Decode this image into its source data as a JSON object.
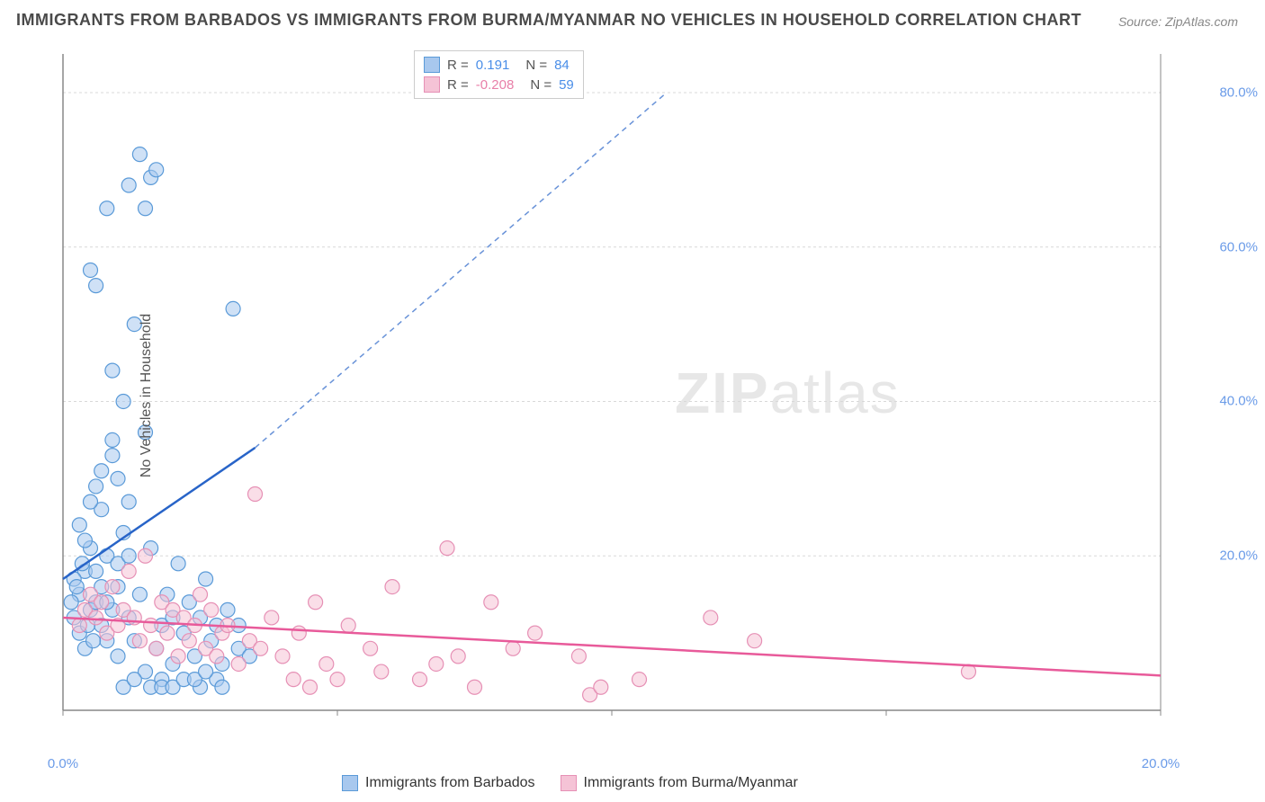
{
  "title": "IMMIGRANTS FROM BARBADOS VS IMMIGRANTS FROM BURMA/MYANMAR NO VEHICLES IN HOUSEHOLD CORRELATION CHART",
  "source": "Source: ZipAtlas.com",
  "ylabel": "No Vehicles in Household",
  "watermark_bold": "ZIP",
  "watermark_light": "atlas",
  "chart": {
    "type": "scatter",
    "xlim": [
      0,
      20
    ],
    "ylim": [
      0,
      85
    ],
    "x_ticks": [
      0,
      5,
      10,
      15,
      20
    ],
    "x_tick_labels": [
      "0.0%",
      "",
      "",
      "",
      "20.0%"
    ],
    "y_ticks": [
      20,
      40,
      60,
      80
    ],
    "y_tick_labels": [
      "20.0%",
      "40.0%",
      "60.0%",
      "80.0%"
    ],
    "grid_color": "#d8d8d8",
    "axis_color": "#888888",
    "background_color": "#ffffff",
    "marker_radius": 8,
    "marker_opacity": 0.55,
    "series": [
      {
        "name": "Immigrants from Barbados",
        "color_fill": "#a8c8ee",
        "color_stroke": "#5a9ad8",
        "trend_color": "#2864c8",
        "trend_solid": {
          "x1": 0,
          "y1": 17,
          "x2": 3.5,
          "y2": 34
        },
        "trend_dashed": {
          "x1": 3.5,
          "y1": 34,
          "x2": 11,
          "y2": 80
        },
        "R": "0.191",
        "N": "84",
        "points": [
          [
            0.2,
            12
          ],
          [
            0.3,
            15
          ],
          [
            0.3,
            10
          ],
          [
            0.4,
            18
          ],
          [
            0.4,
            8
          ],
          [
            0.5,
            21
          ],
          [
            0.5,
            13
          ],
          [
            0.5,
            57
          ],
          [
            0.6,
            14
          ],
          [
            0.6,
            55
          ],
          [
            0.6,
            29
          ],
          [
            0.7,
            11
          ],
          [
            0.7,
            26
          ],
          [
            0.7,
            16
          ],
          [
            0.8,
            65
          ],
          [
            0.8,
            20
          ],
          [
            0.8,
            9
          ],
          [
            0.9,
            44
          ],
          [
            0.9,
            13
          ],
          [
            0.9,
            35
          ],
          [
            1.0,
            30
          ],
          [
            1.0,
            7
          ],
          [
            1.0,
            19
          ],
          [
            1.1,
            40
          ],
          [
            1.1,
            23
          ],
          [
            1.2,
            68
          ],
          [
            1.2,
            12
          ],
          [
            1.2,
            27
          ],
          [
            1.3,
            9
          ],
          [
            1.3,
            50
          ],
          [
            1.4,
            72
          ],
          [
            1.4,
            15
          ],
          [
            1.5,
            65
          ],
          [
            1.5,
            36
          ],
          [
            1.5,
            5
          ],
          [
            1.6,
            69
          ],
          [
            1.6,
            21
          ],
          [
            1.7,
            70
          ],
          [
            1.7,
            8
          ],
          [
            1.8,
            11
          ],
          [
            1.8,
            4
          ],
          [
            1.9,
            15
          ],
          [
            2.0,
            12
          ],
          [
            2.0,
            6
          ],
          [
            2.1,
            19
          ],
          [
            2.2,
            10
          ],
          [
            2.3,
            14
          ],
          [
            2.4,
            7
          ],
          [
            2.5,
            12
          ],
          [
            2.6,
            17
          ],
          [
            2.7,
            9
          ],
          [
            2.8,
            11
          ],
          [
            2.9,
            6
          ],
          [
            3.0,
            13
          ],
          [
            3.1,
            52
          ],
          [
            3.2,
            8
          ],
          [
            1.1,
            3
          ],
          [
            1.3,
            4
          ],
          [
            1.6,
            3
          ],
          [
            1.8,
            3
          ],
          [
            2.0,
            3
          ],
          [
            2.2,
            4
          ],
          [
            2.5,
            3
          ],
          [
            2.8,
            4
          ],
          [
            0.2,
            17
          ],
          [
            0.4,
            22
          ],
          [
            0.6,
            18
          ],
          [
            0.8,
            14
          ],
          [
            1.0,
            16
          ],
          [
            1.2,
            20
          ],
          [
            0.3,
            24
          ],
          [
            0.5,
            27
          ],
          [
            0.7,
            31
          ],
          [
            0.9,
            33
          ],
          [
            2.4,
            4
          ],
          [
            2.6,
            5
          ],
          [
            2.9,
            3
          ],
          [
            3.2,
            11
          ],
          [
            3.4,
            7
          ],
          [
            0.15,
            14
          ],
          [
            0.25,
            16
          ],
          [
            0.35,
            19
          ],
          [
            0.45,
            11
          ],
          [
            0.55,
            9
          ]
        ]
      },
      {
        "name": "Immigrants from Burma/Myanmar",
        "color_fill": "#f5c3d6",
        "color_stroke": "#e690b5",
        "trend_color": "#e85a9a",
        "trend_solid": {
          "x1": 0,
          "y1": 12,
          "x2": 20,
          "y2": 4.5
        },
        "R": "-0.208",
        "N": "59",
        "points": [
          [
            0.3,
            11
          ],
          [
            0.4,
            13
          ],
          [
            0.5,
            15
          ],
          [
            0.6,
            12
          ],
          [
            0.7,
            14
          ],
          [
            0.8,
            10
          ],
          [
            0.9,
            16
          ],
          [
            1.0,
            11
          ],
          [
            1.1,
            13
          ],
          [
            1.2,
            18
          ],
          [
            1.3,
            12
          ],
          [
            1.4,
            9
          ],
          [
            1.5,
            20
          ],
          [
            1.6,
            11
          ],
          [
            1.7,
            8
          ],
          [
            1.8,
            14
          ],
          [
            1.9,
            10
          ],
          [
            2.0,
            13
          ],
          [
            2.1,
            7
          ],
          [
            2.2,
            12
          ],
          [
            2.3,
            9
          ],
          [
            2.4,
            11
          ],
          [
            2.5,
            15
          ],
          [
            2.6,
            8
          ],
          [
            2.7,
            13
          ],
          [
            2.8,
            7
          ],
          [
            2.9,
            10
          ],
          [
            3.0,
            11
          ],
          [
            3.2,
            6
          ],
          [
            3.4,
            9
          ],
          [
            3.5,
            28
          ],
          [
            3.6,
            8
          ],
          [
            3.8,
            12
          ],
          [
            4.0,
            7
          ],
          [
            4.3,
            10
          ],
          [
            4.6,
            14
          ],
          [
            4.8,
            6
          ],
          [
            5.2,
            11
          ],
          [
            5.6,
            8
          ],
          [
            6.0,
            16
          ],
          [
            6.5,
            4
          ],
          [
            7.0,
            21
          ],
          [
            7.2,
            7
          ],
          [
            7.5,
            3
          ],
          [
            7.8,
            14
          ],
          [
            8.2,
            8
          ],
          [
            8.6,
            10
          ],
          [
            9.4,
            7
          ],
          [
            9.6,
            2
          ],
          [
            9.8,
            3
          ],
          [
            10.5,
            4
          ],
          [
            11.8,
            12
          ],
          [
            12.6,
            9
          ],
          [
            16.5,
            5
          ],
          [
            4.2,
            4
          ],
          [
            4.5,
            3
          ],
          [
            5.0,
            4
          ],
          [
            5.8,
            5
          ],
          [
            6.8,
            6
          ]
        ]
      }
    ],
    "legend_bottom": [
      {
        "label": "Immigrants from Barbados",
        "fill": "#a8c8ee",
        "stroke": "#5a9ad8"
      },
      {
        "label": "Immigrants from Burma/Myanmar",
        "fill": "#f5c3d6",
        "stroke": "#e690b5"
      }
    ]
  }
}
